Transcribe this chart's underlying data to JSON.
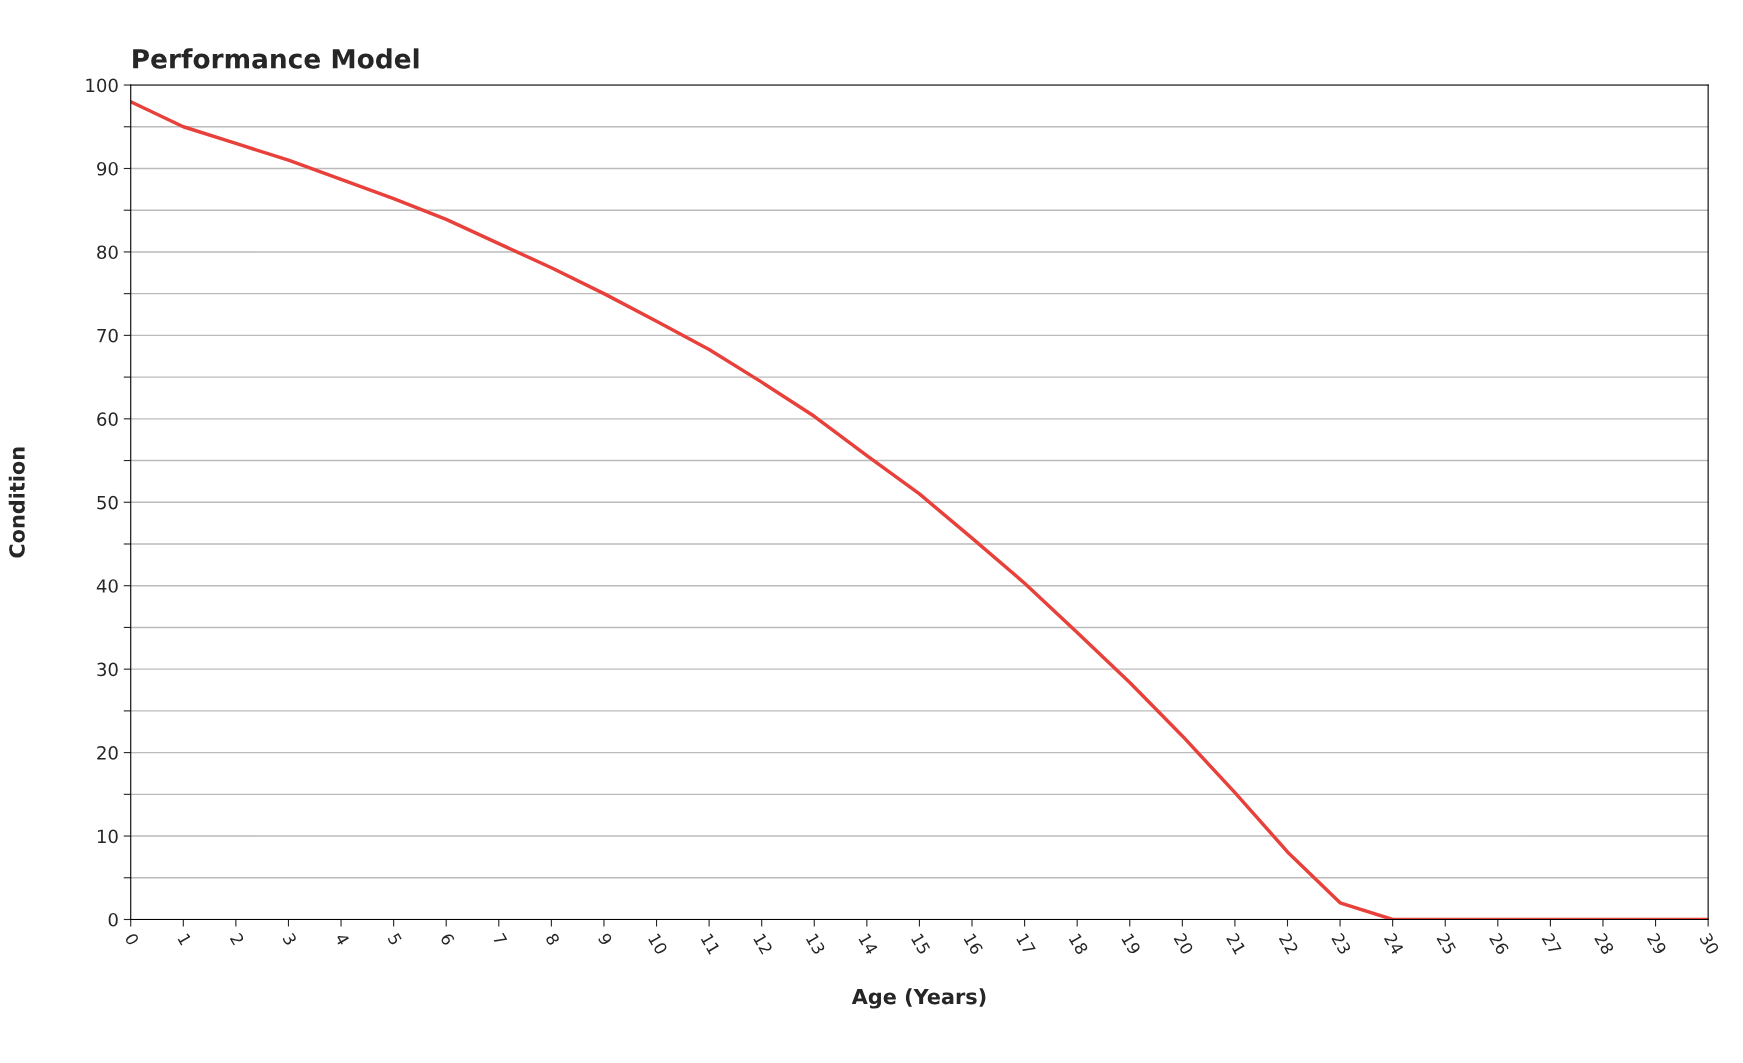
{
  "chart_data": {
    "type": "line",
    "title": "Performance Model",
    "xlabel": "Age (Years)",
    "ylabel": "Condition",
    "x": [
      0,
      1,
      2,
      3,
      4,
      5,
      6,
      7,
      8,
      9,
      10,
      11,
      12,
      13,
      14,
      15,
      16,
      17,
      18,
      19,
      20,
      21,
      22,
      23,
      24,
      25,
      26,
      27,
      28,
      29,
      30
    ],
    "series": [
      {
        "color": "#e8413c",
        "values": [
          98,
          95,
          93,
          91,
          88.7,
          86.4,
          83.9,
          81,
          78.1,
          75,
          71.7,
          68.3,
          64.4,
          60.3,
          55.6,
          51,
          45.7,
          40.3,
          34.4,
          28.4,
          22,
          15.2,
          8.1,
          2,
          0,
          0,
          0,
          0,
          0,
          0,
          0
        ]
      }
    ],
    "xlim": [
      0,
      30
    ],
    "xticks": [
      0,
      1,
      2,
      3,
      4,
      5,
      6,
      7,
      8,
      9,
      10,
      11,
      12,
      13,
      14,
      15,
      16,
      17,
      18,
      19,
      20,
      21,
      22,
      23,
      24,
      25,
      26,
      27,
      28,
      29,
      30
    ],
    "ylim": [
      0,
      100
    ],
    "yticks": [
      0,
      {
        "value": 5,
        "label": null
      },
      10,
      {
        "value": 15,
        "label": null
      },
      20,
      {
        "value": 25,
        "label": null
      },
      30,
      {
        "value": 35,
        "label": null
      },
      40,
      {
        "value": 45,
        "label": null
      },
      50,
      {
        "value": 55,
        "label": null
      },
      60,
      {
        "value": 65,
        "label": null
      },
      70,
      {
        "value": 75,
        "label": null
      },
      80,
      {
        "value": 85,
        "label": null
      },
      90,
      {
        "value": 95,
        "label": null
      },
      100
    ],
    "grid": "y",
    "marker": "none",
    "line_style": "solid"
  }
}
